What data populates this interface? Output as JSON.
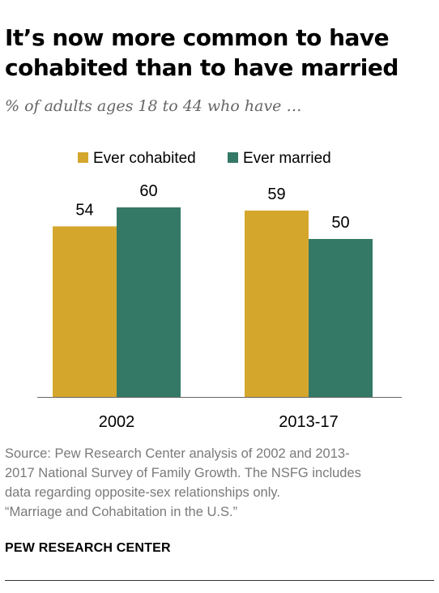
{
  "title_lines": [
    "It’s now more common to have",
    "cohabited than to have married"
  ],
  "subtitle": "% of adults ages 18 to 44 who have …",
  "chart_data": {
    "type": "bar",
    "categories": [
      "2002",
      "2013-17"
    ],
    "series": [
      {
        "name": "Ever cohabited",
        "values": [
          54,
          59
        ],
        "color": "#d4a72c"
      },
      {
        "name": "Ever married",
        "values": [
          60,
          50
        ],
        "color": "#347866"
      }
    ],
    "ylim": [
      0,
      60
    ],
    "legend_position": "top",
    "grid": false
  },
  "source_lines": [
    "Source: Pew Research Center analysis of 2002 and 2013-",
    "2017 National Survey of Family Growth. The NSFG includes",
    "data regarding opposite-sex relationships only.",
    "“Marriage and Cohabitation in the U.S.”"
  ],
  "brand": "PEW RESEARCH CENTER"
}
